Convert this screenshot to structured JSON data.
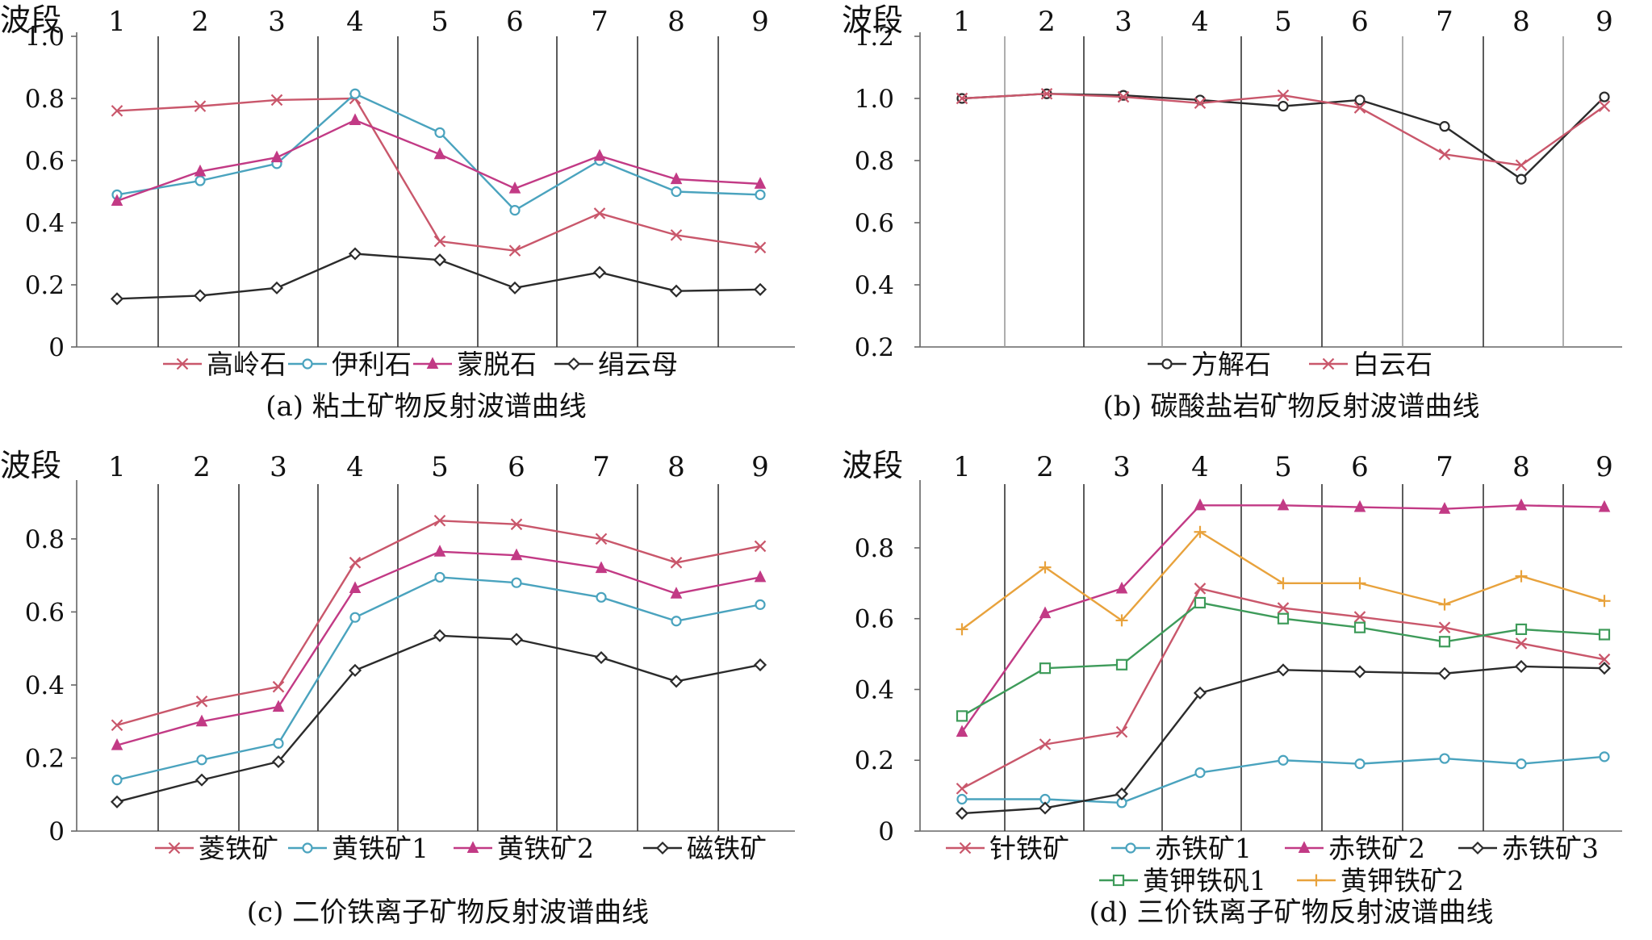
{
  "bands": [
    "1",
    "2",
    "3",
    "4",
    "5",
    "6",
    "7",
    "8",
    "9"
  ],
  "band_axis_title": "波段",
  "chart_data": [
    {
      "type": "line",
      "caption": "(a) 粘土矿物反射波谱曲线",
      "x": [
        1,
        2,
        3,
        4,
        5,
        6,
        7,
        8,
        9
      ],
      "ylim": [
        0,
        1.0
      ],
      "yticks": [
        0,
        0.2,
        0.4,
        0.6,
        0.8,
        1.0
      ],
      "ytick_labels": [
        "0",
        "0.2",
        "0.4",
        "0.6",
        "0.8",
        "1.0"
      ],
      "legend_placement": "bottom",
      "series": [
        {
          "name": "高岭石",
          "color": "#c9576b",
          "marker": "x",
          "values": [
            0.76,
            0.775,
            0.795,
            0.8,
            0.34,
            0.31,
            0.43,
            0.36,
            0.32
          ]
        },
        {
          "name": "伊利石",
          "color": "#4aa3be",
          "marker": "circle",
          "values": [
            0.49,
            0.535,
            0.59,
            0.815,
            0.69,
            0.44,
            0.6,
            0.5,
            0.49
          ]
        },
        {
          "name": "蒙脱石",
          "color": "#c23a85",
          "marker": "triangle",
          "values": [
            0.47,
            0.565,
            0.61,
            0.73,
            0.62,
            0.51,
            0.615,
            0.54,
            0.525
          ]
        },
        {
          "name": "绢云母",
          "color": "#2b2b2b",
          "marker": "diamond",
          "values": [
            0.155,
            0.165,
            0.19,
            0.3,
            0.28,
            0.19,
            0.24,
            0.18,
            0.185
          ]
        }
      ]
    },
    {
      "type": "line",
      "caption": "(b) 碳酸盐岩矿物反射波谱曲线",
      "x": [
        1,
        2,
        3,
        4,
        5,
        6,
        7,
        8,
        9
      ],
      "ylim": [
        0.2,
        1.2
      ],
      "yticks": [
        0.2,
        0.4,
        0.6,
        0.8,
        1.0,
        1.2
      ],
      "ytick_labels": [
        "0.2",
        "0.4",
        "0.6",
        "0.8",
        "1.0",
        "1.2"
      ],
      "legend_placement": "bottom",
      "series": [
        {
          "name": "方解石",
          "color": "#2b2b2b",
          "marker": "circle",
          "values": [
            1.0,
            1.015,
            1.01,
            0.995,
            0.975,
            0.995,
            0.91,
            0.74,
            1.005
          ]
        },
        {
          "name": "白云石",
          "color": "#c9576b",
          "marker": "x",
          "values": [
            1.0,
            1.015,
            1.005,
            0.985,
            1.01,
            0.97,
            0.82,
            0.785,
            0.975
          ]
        }
      ]
    },
    {
      "type": "line",
      "caption": "(c) 二价铁离子矿物反射波谱曲线",
      "x": [
        1,
        2,
        3,
        4,
        5,
        6,
        7,
        8,
        9
      ],
      "ylim": [
        0,
        0.95
      ],
      "yticks": [
        0,
        0.2,
        0.4,
        0.6,
        0.8
      ],
      "ytick_labels": [
        "0",
        "0.2",
        "0.4",
        "0.6",
        "0.8"
      ],
      "legend_placement": "bottom",
      "series": [
        {
          "name": "菱铁矿",
          "color": "#c9576b",
          "marker": "x",
          "values": [
            0.29,
            0.355,
            0.395,
            0.735,
            0.85,
            0.84,
            0.8,
            0.735,
            0.78
          ]
        },
        {
          "name": "黄铁矿1",
          "color": "#4aa3be",
          "marker": "circle",
          "values": [
            0.14,
            0.195,
            0.24,
            0.585,
            0.695,
            0.68,
            0.64,
            0.575,
            0.62
          ]
        },
        {
          "name": "黄铁矿2",
          "color": "#c23a85",
          "marker": "triangle",
          "values": [
            0.235,
            0.3,
            0.34,
            0.665,
            0.765,
            0.755,
            0.72,
            0.65,
            0.695
          ]
        },
        {
          "name": "磁铁矿",
          "color": "#2b2b2b",
          "marker": "diamond",
          "values": [
            0.08,
            0.14,
            0.19,
            0.44,
            0.535,
            0.525,
            0.475,
            0.41,
            0.455
          ]
        }
      ]
    },
    {
      "type": "line",
      "caption": "(d) 三价铁离子矿物反射波谱曲线",
      "x": [
        1,
        2,
        3,
        4,
        5,
        6,
        7,
        8,
        9
      ],
      "ylim": [
        0,
        0.98
      ],
      "yticks": [
        0,
        0.2,
        0.4,
        0.6,
        0.8
      ],
      "ytick_labels": [
        "0",
        "0.2",
        "0.4",
        "0.6",
        "0.8"
      ],
      "legend_placement": "bottom",
      "series": [
        {
          "name": "针铁矿",
          "color": "#c9576b",
          "marker": "x",
          "values": [
            0.12,
            0.245,
            0.28,
            0.685,
            0.63,
            0.605,
            0.575,
            0.53,
            0.485
          ]
        },
        {
          "name": "赤铁矿1",
          "color": "#4aa3be",
          "marker": "circle",
          "values": [
            0.09,
            0.09,
            0.08,
            0.165,
            0.2,
            0.19,
            0.205,
            0.19,
            0.21
          ]
        },
        {
          "name": "赤铁矿2",
          "color": "#c23a85",
          "marker": "triangle",
          "values": [
            0.28,
            0.615,
            0.685,
            0.92,
            0.92,
            0.915,
            0.91,
            0.92,
            0.915
          ]
        },
        {
          "name": "赤铁矿3",
          "color": "#2b2b2b",
          "marker": "diamond",
          "values": [
            0.05,
            0.065,
            0.105,
            0.39,
            0.455,
            0.45,
            0.445,
            0.465,
            0.46
          ]
        },
        {
          "name": "黄钾铁矾1",
          "color": "#3e9b5a",
          "marker": "square",
          "values": [
            0.325,
            0.46,
            0.47,
            0.645,
            0.6,
            0.575,
            0.535,
            0.57,
            0.555
          ]
        },
        {
          "name": "黄钾铁矿2",
          "color": "#e8a23c",
          "marker": "plus",
          "values": [
            0.57,
            0.745,
            0.595,
            0.845,
            0.7,
            0.7,
            0.64,
            0.72,
            0.65
          ]
        }
      ]
    }
  ]
}
